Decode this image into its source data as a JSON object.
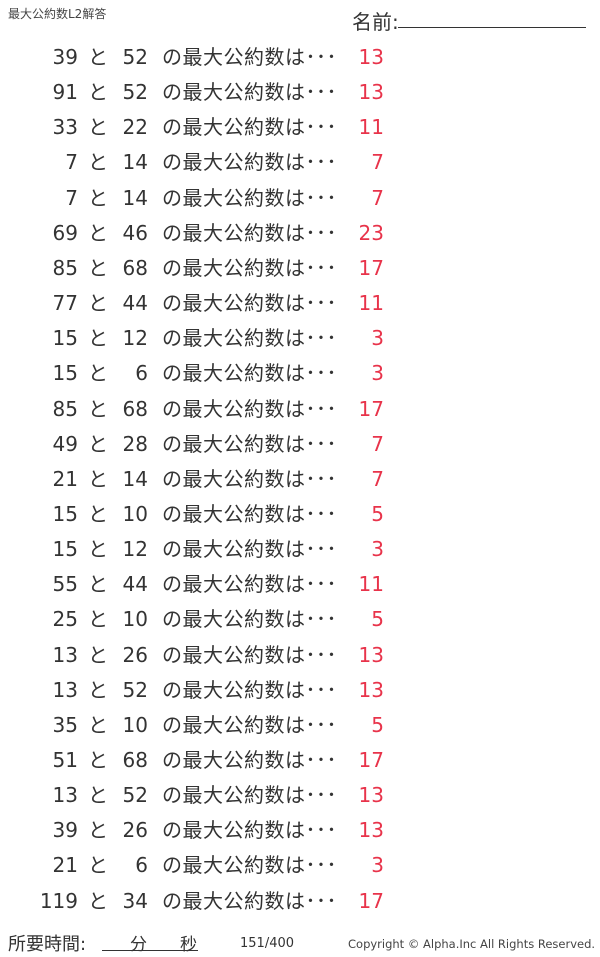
{
  "header": {
    "title": "最大公約数L2解答",
    "name_label": "名前:"
  },
  "phrase": "の最大公約数は･･･",
  "connector": "と",
  "problems": [
    {
      "a": "39",
      "b": "52",
      "answer": "13"
    },
    {
      "a": "91",
      "b": "52",
      "answer": "13"
    },
    {
      "a": "33",
      "b": "22",
      "answer": "11"
    },
    {
      "a": "7",
      "b": "14",
      "answer": "7"
    },
    {
      "a": "7",
      "b": "14",
      "answer": "7"
    },
    {
      "a": "69",
      "b": "46",
      "answer": "23"
    },
    {
      "a": "85",
      "b": "68",
      "answer": "17"
    },
    {
      "a": "77",
      "b": "44",
      "answer": "11"
    },
    {
      "a": "15",
      "b": "12",
      "answer": "3"
    },
    {
      "a": "15",
      "b": "6",
      "answer": "3"
    },
    {
      "a": "85",
      "b": "68",
      "answer": "17"
    },
    {
      "a": "49",
      "b": "28",
      "answer": "7"
    },
    {
      "a": "21",
      "b": "14",
      "answer": "7"
    },
    {
      "a": "15",
      "b": "10",
      "answer": "5"
    },
    {
      "a": "15",
      "b": "12",
      "answer": "3"
    },
    {
      "a": "55",
      "b": "44",
      "answer": "11"
    },
    {
      "a": "25",
      "b": "10",
      "answer": "5"
    },
    {
      "a": "13",
      "b": "26",
      "answer": "13"
    },
    {
      "a": "13",
      "b": "52",
      "answer": "13"
    },
    {
      "a": "35",
      "b": "10",
      "answer": "5"
    },
    {
      "a": "51",
      "b": "68",
      "answer": "17"
    },
    {
      "a": "13",
      "b": "52",
      "answer": "13"
    },
    {
      "a": "39",
      "b": "26",
      "answer": "13"
    },
    {
      "a": "21",
      "b": "6",
      "answer": "3"
    },
    {
      "a": "119",
      "b": "34",
      "answer": "17"
    }
  ],
  "footer": {
    "time_label": "所要時間:",
    "minutes": "分",
    "seconds": "秒",
    "page": "151/400",
    "copyright": "Copyright ©  Alpha.Inc All Rights Reserved."
  },
  "colors": {
    "answer": "#e8334a",
    "text": "#333333"
  }
}
